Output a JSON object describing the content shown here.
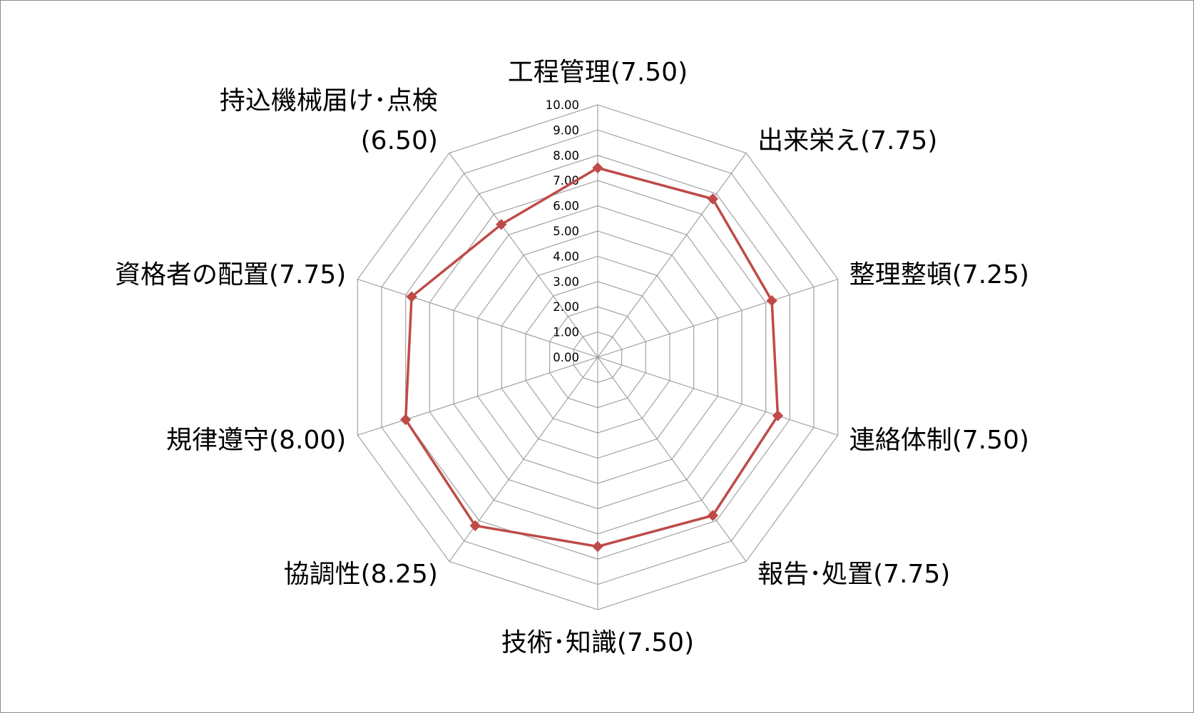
{
  "chart_data": {
    "type": "radar",
    "categories": [
      {
        "name": "工程管理",
        "value_label": "(7.50)"
      },
      {
        "name": "出来栄え",
        "value_label": "(7.75)"
      },
      {
        "name": "整理整頓",
        "value_label": "(7.25)"
      },
      {
        "name": "連絡体制",
        "value_label": "(7.50)"
      },
      {
        "name": "報告･処置",
        "value_label": "(7.75)"
      },
      {
        "name": "技術･知識",
        "value_label": "(7.50)"
      },
      {
        "name": "協調性",
        "value_label": "(8.25)"
      },
      {
        "name": "規律遵守",
        "value_label": "(8.00)"
      },
      {
        "name": "資格者の配置",
        "value_label": "(7.75)"
      },
      {
        "name": "持込機械届け･点検",
        "value_label": "(6.50)"
      }
    ],
    "series": [
      {
        "values": [
          7.5,
          7.75,
          7.25,
          7.5,
          7.75,
          7.5,
          8.25,
          8.0,
          7.75,
          6.5
        ],
        "color": "#be4b48"
      }
    ],
    "rlim": [
      0,
      10
    ],
    "rticks": [
      "0.00",
      "1.00",
      "2.00",
      "3.00",
      "4.00",
      "5.00",
      "6.00",
      "7.00",
      "8.00",
      "9.00",
      "10.00"
    ],
    "grid": true,
    "grid_color": "#9a9a9a",
    "marker": "diamond",
    "legend": "none"
  }
}
